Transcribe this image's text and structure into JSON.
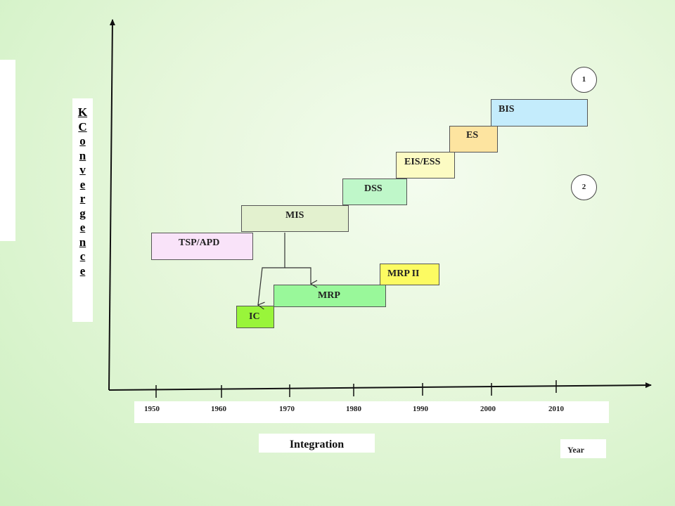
{
  "axis": {
    "y_label_letters": [
      "K",
      "C",
      "o",
      "n",
      "v",
      "e",
      "r",
      "g",
      "e",
      "n",
      "c",
      "e"
    ],
    "years": [
      "1950",
      "1960",
      "1970",
      "1980",
      "1990",
      "2000",
      "2010"
    ],
    "x_title": "Integration",
    "year_label": "Year"
  },
  "boxes": {
    "tsp_apd": "TSP/APD",
    "mis": "MIS",
    "dss": "DSS",
    "eis_ess": "EIS/ESS",
    "es": "ES",
    "bis": "BIS",
    "ic": "IC",
    "mrp": "MRP",
    "mrp2": "MRP II"
  },
  "colors": {
    "tsp_apd": "#f9e3f9",
    "mis": "#e3f1cf",
    "dss": "#bff7c9",
    "eis_ess": "#fcfbc3",
    "es": "#fde4a0",
    "bis": "#c4ecfc",
    "ic": "#99f53a",
    "mrp": "#99f89a",
    "mrp2": "#fcfb62"
  },
  "markers": [
    "1",
    "2"
  ]
}
